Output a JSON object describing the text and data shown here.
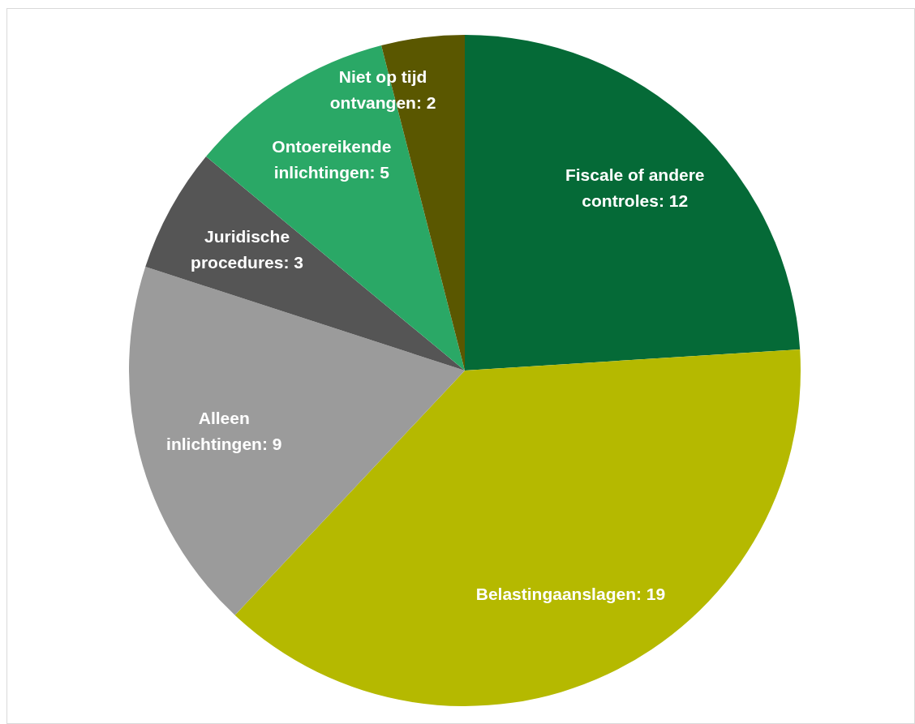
{
  "chart_data": {
    "type": "pie",
    "categories": [
      "Fiscale of andere controles",
      "Belastingaanslagen",
      "Alleen inlichtingen",
      "Juridische procedures",
      "Ontoereikende inlichtingen",
      "Niet op tijd ontvangen"
    ],
    "values": [
      12,
      19,
      9,
      3,
      5,
      2
    ],
    "colors": [
      "#056a37",
      "#b5b900",
      "#9b9b9b",
      "#555555",
      "#2aa866",
      "#5a5700"
    ],
    "value_labels": [
      ": 12",
      ": 19",
      ": 9",
      ": 3",
      ": 5",
      ": 2"
    ],
    "legend": false
  }
}
